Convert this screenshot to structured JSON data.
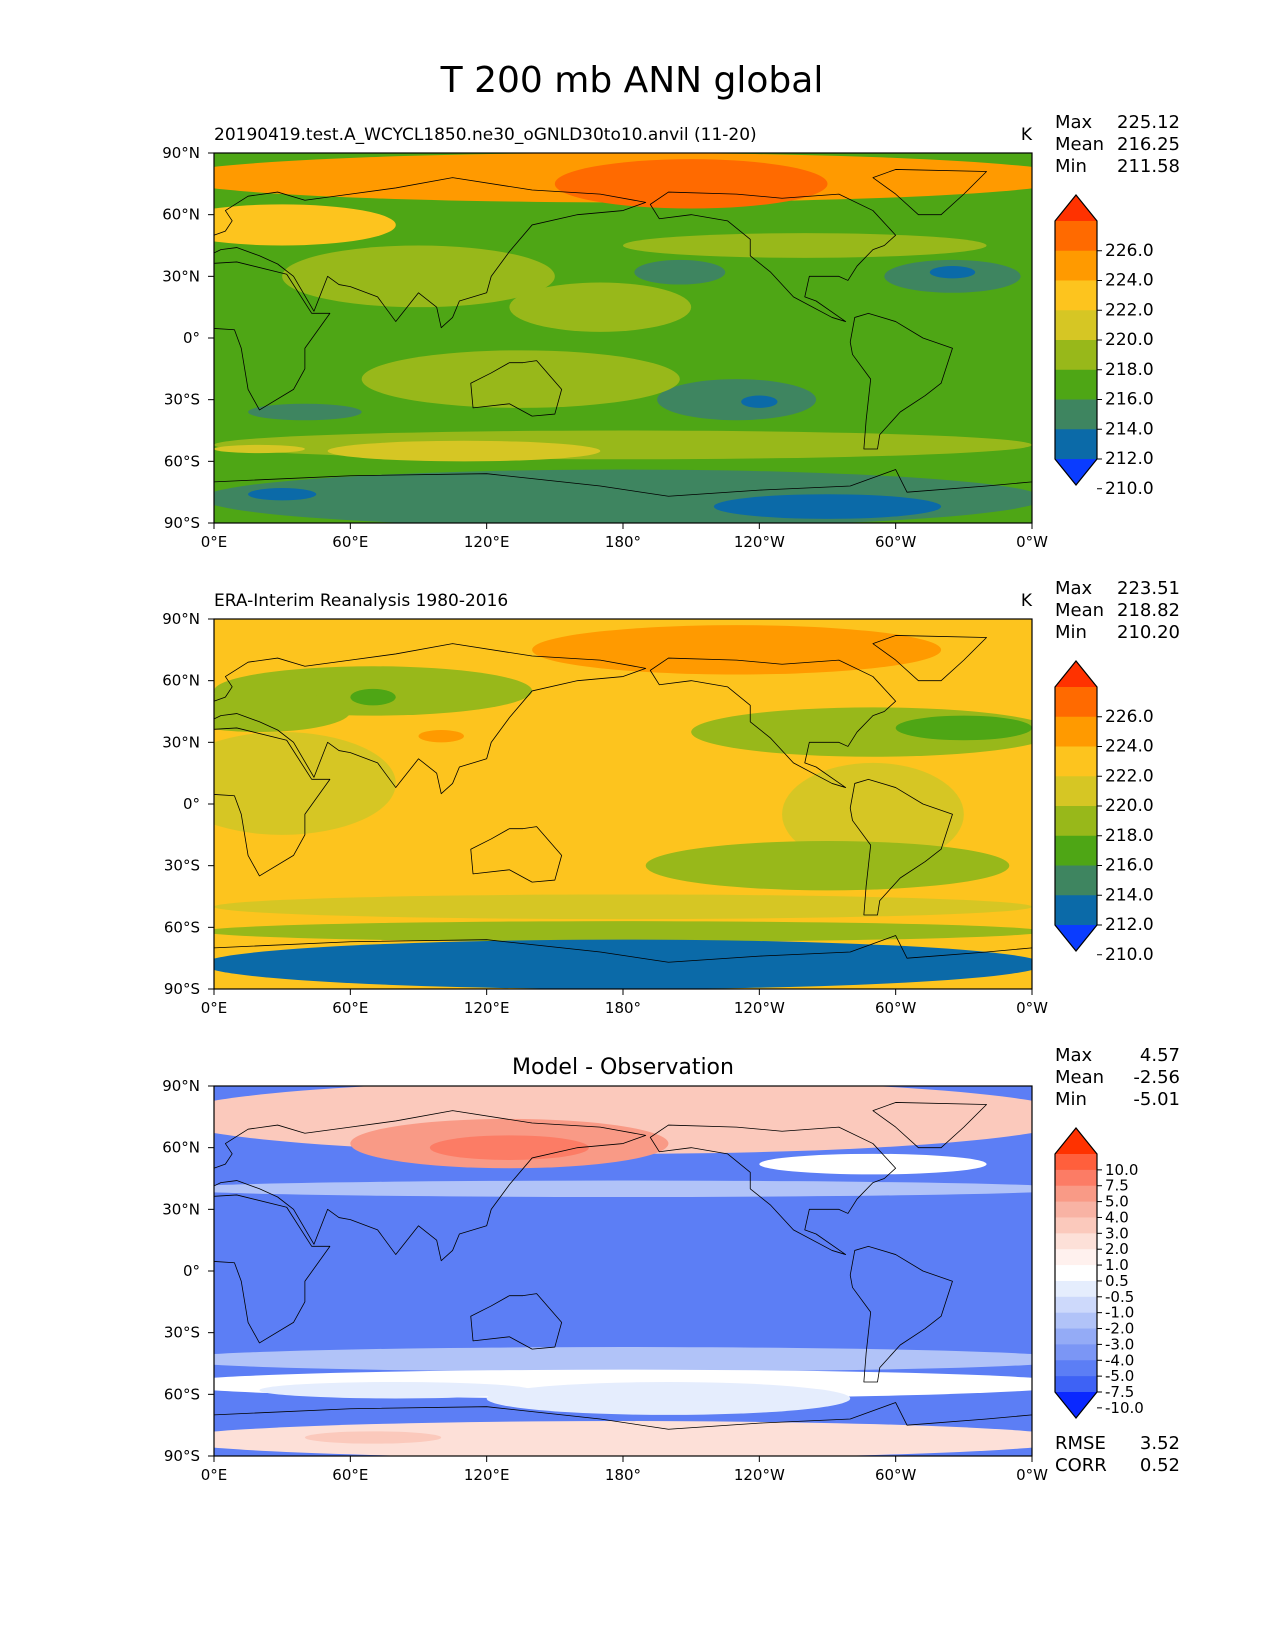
{
  "figure": {
    "title": "T 200 mb ANN global"
  },
  "chart_data": [
    {
      "type": "heatmap",
      "title": "20190419.test.A_WCYCL1850.ne30_oGNLD30to10.anvil (11-20)",
      "units": "K",
      "stats": [
        {
          "label": "Max",
          "value": "225.12"
        },
        {
          "label": "Mean",
          "value": "216.25"
        },
        {
          "label": "Min",
          "value": "211.58"
        }
      ],
      "colorbar": {
        "labels": [
          "226.0",
          "224.0",
          "222.0",
          "220.0",
          "218.0",
          "216.0",
          "214.0",
          "212.0",
          "210.0"
        ],
        "colors": [
          "#ff3200",
          "#ff6a00",
          "#ff9a00",
          "#fdc41e",
          "#d6c624",
          "#98b81a",
          "#4ea615",
          "#3e8560",
          "#0b6aa8",
          "#0a3cff"
        ]
      },
      "background": "#4ea615",
      "blobs": [
        {
          "lon": 180,
          "lat": 78,
          "rlon": 200,
          "rlat": 12,
          "color": "#ff9a00"
        },
        {
          "lon": 210,
          "lat": 75,
          "rlon": 60,
          "rlat": 12,
          "color": "#ff6a00"
        },
        {
          "lon": 30,
          "lat": 55,
          "rlon": 50,
          "rlat": 10,
          "color": "#fdc41e"
        },
        {
          "lon": 90,
          "lat": 30,
          "rlon": 60,
          "rlat": 15,
          "color": "#98b81a"
        },
        {
          "lon": 260,
          "lat": 45,
          "rlon": 80,
          "rlat": 6,
          "color": "#98b81a"
        },
        {
          "lon": 170,
          "lat": 15,
          "rlon": 40,
          "rlat": 12,
          "color": "#98b81a"
        },
        {
          "lon": 325,
          "lat": 30,
          "rlon": 30,
          "rlat": 8,
          "color": "#3e8560"
        },
        {
          "lon": 325,
          "lat": 32,
          "rlon": 10,
          "rlat": 3,
          "color": "#0b6aa8"
        },
        {
          "lon": 205,
          "lat": 32,
          "rlon": 20,
          "rlat": 6,
          "color": "#3e8560"
        },
        {
          "lon": 230,
          "lat": -30,
          "rlon": 35,
          "rlat": 10,
          "color": "#3e8560"
        },
        {
          "lon": 240,
          "lat": -31,
          "rlon": 8,
          "rlat": 3,
          "color": "#0b6aa8"
        },
        {
          "lon": 135,
          "lat": -20,
          "rlon": 70,
          "rlat": 14,
          "color": "#98b81a"
        },
        {
          "lon": 40,
          "lat": -36,
          "rlon": 25,
          "rlat": 4,
          "color": "#3e8560"
        },
        {
          "lon": 180,
          "lat": -52,
          "rlon": 180,
          "rlat": 7,
          "color": "#98b81a"
        },
        {
          "lon": 110,
          "lat": -55,
          "rlon": 60,
          "rlat": 5,
          "color": "#d6c624"
        },
        {
          "lon": 20,
          "lat": -54,
          "rlon": 20,
          "rlat": 2,
          "color": "#d6c624"
        },
        {
          "lon": 180,
          "lat": -78,
          "rlon": 185,
          "rlat": 14,
          "color": "#3e8560"
        },
        {
          "lon": 270,
          "lat": -82,
          "rlon": 50,
          "rlat": 6,
          "color": "#0b6aa8"
        },
        {
          "lon": 30,
          "lat": -76,
          "rlon": 15,
          "rlat": 3,
          "color": "#0b6aa8"
        }
      ]
    },
    {
      "type": "heatmap",
      "title": "ERA-Interim Reanalysis 1980-2016",
      "units": "K",
      "stats": [
        {
          "label": "Max",
          "value": "223.51"
        },
        {
          "label": "Mean",
          "value": "218.82"
        },
        {
          "label": "Min",
          "value": "210.20"
        }
      ],
      "colorbar": {
        "labels": [
          "226.0",
          "224.0",
          "222.0",
          "220.0",
          "218.0",
          "216.0",
          "214.0",
          "212.0",
          "210.0"
        ],
        "colors": [
          "#ff3200",
          "#ff6a00",
          "#ff9a00",
          "#fdc41e",
          "#d6c624",
          "#98b81a",
          "#4ea615",
          "#3e8560",
          "#0b6aa8",
          "#0a3cff"
        ]
      },
      "background": "#fdc41e",
      "blobs": [
        {
          "lon": 70,
          "lat": 55,
          "rlon": 70,
          "rlat": 12,
          "color": "#98b81a"
        },
        {
          "lon": 70,
          "lat": 52,
          "rlon": 10,
          "rlat": 4,
          "color": "#4ea615"
        },
        {
          "lon": 20,
          "lat": 45,
          "rlon": 40,
          "rlat": 10,
          "color": "#98b81a"
        },
        {
          "lon": 230,
          "lat": 75,
          "rlon": 90,
          "rlat": 12,
          "color": "#ff9a00"
        },
        {
          "lon": 290,
          "lat": 35,
          "rlon": 80,
          "rlat": 12,
          "color": "#98b81a"
        },
        {
          "lon": 330,
          "lat": 37,
          "rlon": 30,
          "rlat": 6,
          "color": "#4ea615"
        },
        {
          "lon": 100,
          "lat": 33,
          "rlon": 10,
          "rlat": 3,
          "color": "#ff9a00"
        },
        {
          "lon": 30,
          "lat": 10,
          "rlon": 50,
          "rlat": 25,
          "color": "#d6c624"
        },
        {
          "lon": 290,
          "lat": -5,
          "rlon": 40,
          "rlat": 25,
          "color": "#d6c624"
        },
        {
          "lon": 270,
          "lat": -30,
          "rlon": 80,
          "rlat": 12,
          "color": "#98b81a"
        },
        {
          "lon": 180,
          "lat": -50,
          "rlon": 180,
          "rlat": 6,
          "color": "#d6c624"
        },
        {
          "lon": 180,
          "lat": -62,
          "rlon": 185,
          "rlat": 5,
          "color": "#98b81a"
        },
        {
          "lon": 180,
          "lat": -78,
          "rlon": 185,
          "rlat": 12,
          "color": "#0b6aa8"
        }
      ]
    },
    {
      "type": "heatmap",
      "title": "Model - Observation",
      "units": "",
      "stats": [
        {
          "label": "Max",
          "value": "4.57"
        },
        {
          "label": "Mean",
          "value": "-2.56"
        },
        {
          "label": "Min",
          "value": "-5.01"
        }
      ],
      "colorbar": {
        "labels": [
          "10.0",
          "7.5",
          "5.0",
          "4.0",
          "3.0",
          "2.0",
          "1.0",
          "0.5",
          "-0.5",
          "-1.0",
          "-2.0",
          "-3.0",
          "-4.0",
          "-5.0",
          "-7.5",
          "-10.0"
        ],
        "colors": [
          "#ff3200",
          "#ff5f3c",
          "#fc7c65",
          "#f99a86",
          "#f8b3a4",
          "#fbc9bc",
          "#fde0d8",
          "#fff1ee",
          "#ffffff",
          "#e5edfd",
          "#cdd9fb",
          "#b1c3f8",
          "#94abf6",
          "#7b96f5",
          "#5c7ef5",
          "#3e62f5",
          "#0a28ff"
        ]
      },
      "background": "#5c7ef5",
      "blobs": [
        {
          "lon": 180,
          "lat": 75,
          "rlon": 200,
          "rlat": 18,
          "color": "#fbc9bc"
        },
        {
          "lon": 130,
          "lat": 62,
          "rlon": 70,
          "rlat": 12,
          "color": "#f99a86"
        },
        {
          "lon": 130,
          "lat": 60,
          "rlon": 35,
          "rlat": 6,
          "color": "#fc7c65"
        },
        {
          "lon": 290,
          "lat": 52,
          "rlon": 50,
          "rlat": 5,
          "color": "#ffffff"
        },
        {
          "lon": 180,
          "lat": 40,
          "rlon": 200,
          "rlat": 4,
          "color": "#b1c3f8"
        },
        {
          "lon": 180,
          "lat": -43,
          "rlon": 200,
          "rlat": 6,
          "color": "#b1c3f8"
        },
        {
          "lon": 180,
          "lat": -55,
          "rlon": 200,
          "rlat": 7,
          "color": "#ffffff"
        },
        {
          "lon": 200,
          "lat": -62,
          "rlon": 80,
          "rlat": 8,
          "color": "#e5edfd"
        },
        {
          "lon": 80,
          "lat": -58,
          "rlon": 60,
          "rlat": 4,
          "color": "#e5edfd"
        },
        {
          "lon": 180,
          "lat": -82,
          "rlon": 200,
          "rlat": 9,
          "color": "#fde0d8"
        },
        {
          "lon": 70,
          "lat": -81,
          "rlon": 30,
          "rlat": 3,
          "color": "#fbc9bc"
        }
      ]
    }
  ],
  "axes": {
    "xticks": [
      "0°E",
      "60°E",
      "120°E",
      "180°",
      "120°W",
      "60°W",
      "0°W"
    ],
    "yticks": [
      "90°N",
      "60°N",
      "30°N",
      "0°",
      "30°S",
      "60°S",
      "90°S"
    ]
  },
  "diff_metrics": [
    {
      "label": "RMSE",
      "value": "3.52"
    },
    {
      "label": "CORR",
      "value": "0.52"
    }
  ]
}
